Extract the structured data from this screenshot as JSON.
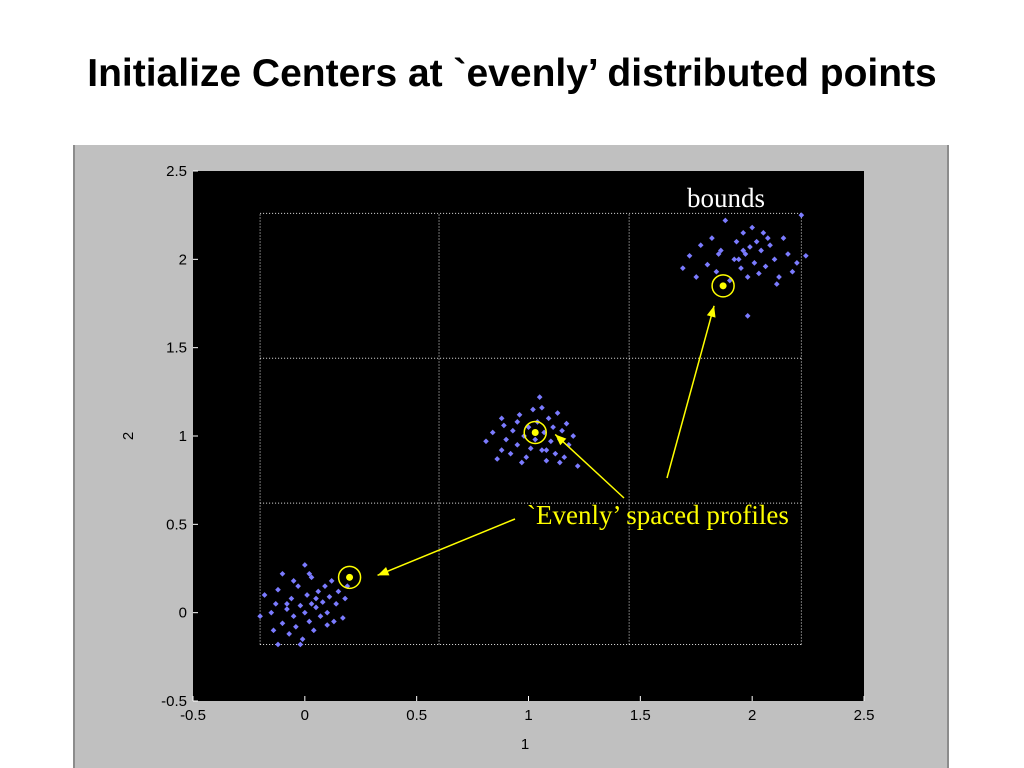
{
  "slide": {
    "title": "Initialize Centers at `evenly’ distributed points"
  },
  "chart_data": {
    "type": "scatter",
    "title": "",
    "xlabel": "1",
    "ylabel": "2",
    "xlim": [
      -0.5,
      2.5
    ],
    "ylim": [
      -0.5,
      2.5
    ],
    "xticks": [
      "-0.5",
      "0",
      "0.5",
      "1",
      "1.5",
      "2",
      "2.5"
    ],
    "yticks": [
      "-0.5",
      "0",
      "0.5",
      "1",
      "1.5",
      "2",
      "2.5"
    ],
    "background": "#000000",
    "point_color": "#7b7bff",
    "center_color": "#ffff00",
    "grid": {
      "x": [
        -0.2,
        0.6,
        1.45,
        2.22
      ],
      "y": [
        -0.18,
        0.62,
        1.44,
        2.26
      ]
    },
    "series": [
      {
        "points": [
          [
            -0.2,
            -0.02
          ],
          [
            -0.18,
            0.1
          ],
          [
            -0.15,
            0.0
          ],
          [
            -0.14,
            -0.1
          ],
          [
            -0.13,
            0.05
          ],
          [
            -0.12,
            -0.18
          ],
          [
            -0.12,
            0.13
          ],
          [
            -0.1,
            -0.06
          ],
          [
            -0.08,
            0.02
          ],
          [
            -0.07,
            -0.12
          ],
          [
            -0.06,
            0.08
          ],
          [
            -0.05,
            -0.02
          ],
          [
            -0.04,
            -0.08
          ],
          [
            -0.03,
            0.15
          ],
          [
            -0.02,
            0.04
          ],
          [
            -0.01,
            -0.15
          ],
          [
            0.0,
            0.0
          ],
          [
            0.01,
            0.1
          ],
          [
            0.02,
            -0.05
          ],
          [
            0.03,
            0.2
          ],
          [
            0.03,
            0.05
          ],
          [
            0.04,
            -0.1
          ],
          [
            0.05,
            0.03
          ],
          [
            0.06,
            0.12
          ],
          [
            0.07,
            -0.02
          ],
          [
            0.08,
            0.06
          ],
          [
            0.09,
            0.15
          ],
          [
            0.1,
            0.0
          ],
          [
            0.11,
            0.09
          ],
          [
            0.12,
            0.18
          ],
          [
            0.14,
            0.05
          ],
          [
            0.15,
            0.12
          ],
          [
            0.17,
            -0.03
          ],
          [
            0.18,
            0.08
          ],
          [
            0.19,
            0.15
          ],
          [
            -0.05,
            0.18
          ],
          [
            0.0,
            0.27
          ],
          [
            -0.02,
            -0.18
          ],
          [
            0.1,
            -0.07
          ],
          [
            -0.1,
            0.22
          ],
          [
            0.05,
            0.08
          ],
          [
            -0.08,
            0.05
          ],
          [
            0.13,
            -0.05
          ],
          [
            0.02,
            0.22
          ],
          [
            0.81,
            0.97
          ],
          [
            0.84,
            1.02
          ],
          [
            0.86,
            0.87
          ],
          [
            0.88,
            0.92
          ],
          [
            0.89,
            1.06
          ],
          [
            0.9,
            0.98
          ],
          [
            0.92,
            0.9
          ],
          [
            0.93,
            1.03
          ],
          [
            0.95,
            0.95
          ],
          [
            0.96,
            1.12
          ],
          [
            0.98,
            1.0
          ],
          [
            0.99,
            0.88
          ],
          [
            1.0,
            1.05
          ],
          [
            1.01,
            0.93
          ],
          [
            1.02,
            1.15
          ],
          [
            1.03,
            0.98
          ],
          [
            1.04,
            1.08
          ],
          [
            1.05,
            1.22
          ],
          [
            1.06,
            0.92
          ],
          [
            1.07,
            1.02
          ],
          [
            1.08,
            0.86
          ],
          [
            1.09,
            1.1
          ],
          [
            1.1,
            0.97
          ],
          [
            1.11,
            1.05
          ],
          [
            1.12,
            0.9
          ],
          [
            1.13,
            1.13
          ],
          [
            1.14,
            0.98
          ],
          [
            1.15,
            1.03
          ],
          [
            1.16,
            0.88
          ],
          [
            1.17,
            1.07
          ],
          [
            1.18,
            0.95
          ],
          [
            1.2,
            1.0
          ],
          [
            1.22,
            0.83
          ],
          [
            0.97,
            0.85
          ],
          [
            1.08,
            0.92
          ],
          [
            0.88,
            1.1
          ],
          [
            1.14,
            0.85
          ],
          [
            0.95,
            1.08
          ],
          [
            1.06,
            1.16
          ],
          [
            1.69,
            1.95
          ],
          [
            1.72,
            2.02
          ],
          [
            1.75,
            1.9
          ],
          [
            1.77,
            2.08
          ],
          [
            1.8,
            1.97
          ],
          [
            1.82,
            2.12
          ],
          [
            1.84,
            1.93
          ],
          [
            1.86,
            2.05
          ],
          [
            1.88,
            2.22
          ],
          [
            1.9,
            1.88
          ],
          [
            1.92,
            2.0
          ],
          [
            1.93,
            2.1
          ],
          [
            1.95,
            1.95
          ],
          [
            1.96,
            2.15
          ],
          [
            1.97,
            2.03
          ],
          [
            1.98,
            1.9
          ],
          [
            1.99,
            2.07
          ],
          [
            2.0,
            2.18
          ],
          [
            2.01,
            1.98
          ],
          [
            2.02,
            2.1
          ],
          [
            2.03,
            1.92
          ],
          [
            2.04,
            2.05
          ],
          [
            2.05,
            2.15
          ],
          [
            2.06,
            1.96
          ],
          [
            2.08,
            2.08
          ],
          [
            2.1,
            2.0
          ],
          [
            2.12,
            1.9
          ],
          [
            2.14,
            2.12
          ],
          [
            2.16,
            2.03
          ],
          [
            2.18,
            1.93
          ],
          [
            2.2,
            1.98
          ],
          [
            2.22,
            2.25
          ],
          [
            2.24,
            2.02
          ],
          [
            1.98,
            1.68
          ],
          [
            2.11,
            1.86
          ],
          [
            1.94,
            2.0
          ],
          [
            2.07,
            2.12
          ],
          [
            1.85,
            2.03
          ],
          [
            1.96,
            2.05
          ]
        ]
      }
    ],
    "centers": [
      [
        0.2,
        0.2
      ],
      [
        1.03,
        1.02
      ],
      [
        1.87,
        1.85
      ]
    ],
    "annotations": {
      "bounds_label": "bounds",
      "bounds_color": "#ffffff",
      "profiles_label": "`Evenly’ spaced profiles",
      "profiles_color": "#ffff00"
    }
  }
}
